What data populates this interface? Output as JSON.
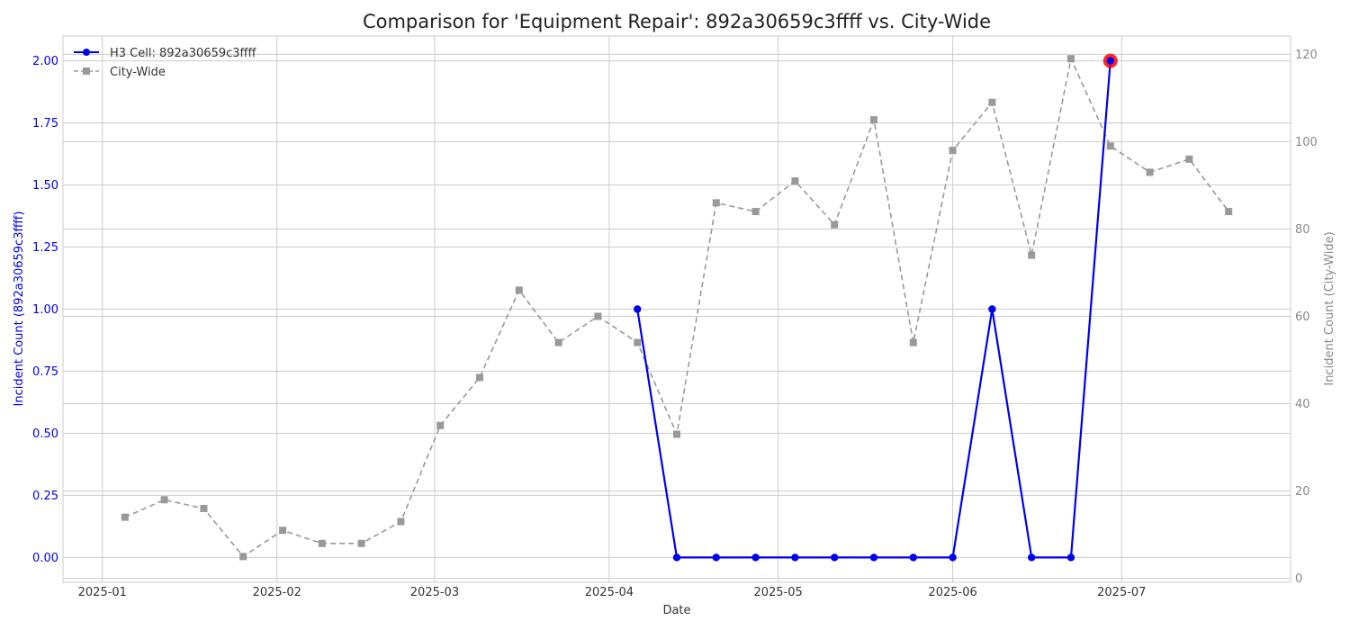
{
  "chart_data": {
    "type": "line",
    "title": "Comparison for 'Equipment Repair': 892a30659c3ffff vs. City-Wide",
    "xlabel": "Date",
    "ylabel_left": "Incident Count (892a30659c3ffff)",
    "ylabel_right": "Incident Count (City-Wide)",
    "x_ticks": [
      "2025-01",
      "2025-02",
      "2025-03",
      "2025-04",
      "2025-05",
      "2025-06",
      "2025-07"
    ],
    "x_range": [
      "2024-12-25",
      "2025-07-31"
    ],
    "y_left_ticks": [
      "0.00",
      "0.25",
      "0.50",
      "0.75",
      "1.00",
      "1.25",
      "1.50",
      "1.75",
      "2.00"
    ],
    "y_left_range": [
      -0.1,
      2.1
    ],
    "y_right_ticks": [
      "0",
      "20",
      "40",
      "60",
      "80",
      "100",
      "120"
    ],
    "y_right_range": [
      -0.9,
      124.2
    ],
    "grid": true,
    "legend_position": "top-left",
    "series": [
      {
        "name": "H3 Cell: 892a30659c3ffff",
        "axis": "left",
        "color": "#0000ee",
        "marker": "circle",
        "style": "solid",
        "x": [
          "2025-04-06",
          "2025-04-13",
          "2025-04-20",
          "2025-04-27",
          "2025-05-04",
          "2025-05-11",
          "2025-05-18",
          "2025-05-25",
          "2025-06-01",
          "2025-06-08",
          "2025-06-15",
          "2025-06-22",
          "2025-06-29"
        ],
        "y": [
          1,
          0,
          0,
          0,
          0,
          0,
          0,
          0,
          0,
          1,
          0,
          0,
          2
        ]
      },
      {
        "name": "City-Wide",
        "axis": "right",
        "color": "#999999",
        "marker": "square",
        "style": "dashed",
        "x": [
          "2025-01-05",
          "2025-01-12",
          "2025-01-19",
          "2025-01-26",
          "2025-02-02",
          "2025-02-09",
          "2025-02-16",
          "2025-02-23",
          "2025-03-02",
          "2025-03-09",
          "2025-03-16",
          "2025-03-23",
          "2025-03-30",
          "2025-04-06",
          "2025-04-13",
          "2025-04-20",
          "2025-04-27",
          "2025-05-04",
          "2025-05-11",
          "2025-05-18",
          "2025-05-25",
          "2025-06-01",
          "2025-06-08",
          "2025-06-15",
          "2025-06-22",
          "2025-06-29",
          "2025-07-06",
          "2025-07-13",
          "2025-07-20"
        ],
        "y": [
          14,
          18,
          16,
          5,
          11,
          8,
          8,
          13,
          35,
          46,
          66,
          54,
          60,
          54,
          33,
          86,
          84,
          91,
          81,
          105,
          54,
          98,
          109,
          74,
          119,
          99,
          93,
          96,
          84
        ]
      }
    ],
    "highlight": {
      "series": 0,
      "x": "2025-06-29",
      "y": 2,
      "color": "#ff0000"
    }
  }
}
